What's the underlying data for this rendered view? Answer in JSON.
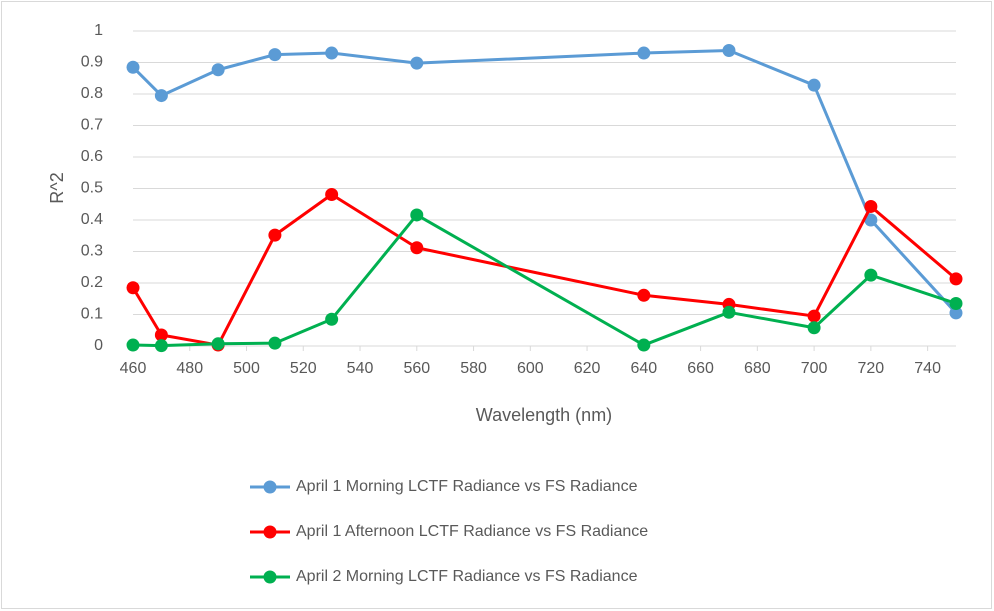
{
  "chart_data": {
    "type": "line",
    "x_label": "Wavelength (nm)",
    "y_label": "R^2",
    "x": [
      460,
      470,
      490,
      510,
      530,
      560,
      640,
      670,
      700,
      720,
      750
    ],
    "series": [
      {
        "name": "April 1 Morning LCTF Radiance vs FS Radiance",
        "color": "#5b9bd5",
        "values": [
          0.885,
          0.795,
          0.877,
          0.925,
          0.93,
          0.898,
          0.93,
          0.938,
          0.828,
          0.4,
          0.105
        ]
      },
      {
        "name": "April 1 Afternoon LCTF Radiance vs FS Radiance",
        "color": "#ff0000",
        "values": [
          0.185,
          0.035,
          0.003,
          0.352,
          0.481,
          0.312,
          0.161,
          0.132,
          0.095,
          0.443,
          0.213
        ]
      },
      {
        "name": "April 2 Morning LCTF Radiance vs FS Radiance",
        "color": "#00b050",
        "values": [
          0.003,
          0.001,
          0.007,
          0.009,
          0.085,
          0.416,
          0.003,
          0.107,
          0.058,
          0.225,
          0.135
        ]
      }
    ],
    "xlim": [
      460,
      750
    ],
    "xticks": [
      460,
      480,
      500,
      520,
      540,
      560,
      580,
      600,
      620,
      640,
      660,
      680,
      700,
      720,
      740
    ],
    "ylim": [
      0,
      1
    ],
    "yticks": [
      0,
      0.1,
      0.2,
      0.3,
      0.4,
      0.5,
      0.6,
      0.7,
      0.8,
      0.9,
      1
    ],
    "grid": true,
    "legend": "bottom"
  }
}
